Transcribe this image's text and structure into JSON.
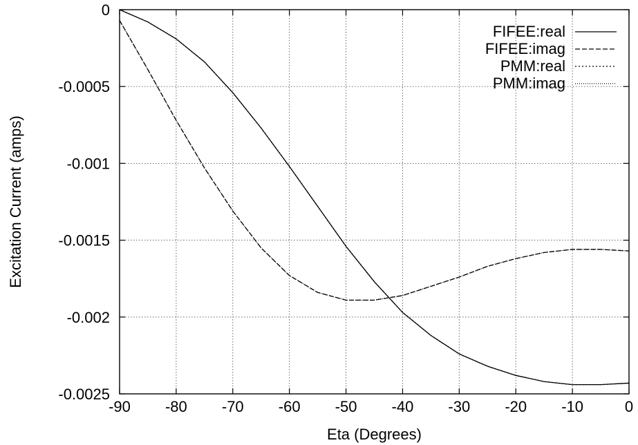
{
  "chart_data": {
    "type": "line",
    "title": "",
    "xlabel": "Eta (Degrees)",
    "ylabel": "Excitation Current (amps)",
    "xlim": [
      -90,
      0
    ],
    "ylim": [
      -0.0025,
      0
    ],
    "xticks": [
      -90,
      -80,
      -70,
      -60,
      -50,
      -40,
      -30,
      -20,
      -10,
      0
    ],
    "xtick_labels": [
      "-90",
      "-80",
      "-70",
      "-60",
      "-50",
      "-40",
      "-30",
      "-20",
      "-10",
      "0"
    ],
    "yticks": [
      0,
      -0.0005,
      -0.001,
      -0.0015,
      -0.002,
      -0.0025
    ],
    "ytick_labels": [
      "0",
      "-0.0005",
      "-0.001",
      "-0.0015",
      "-0.002",
      "-0.0025"
    ],
    "grid": true,
    "legend_position": "top-right",
    "x": [
      -90,
      -85,
      -80,
      -75,
      -70,
      -65,
      -60,
      -55,
      -50,
      -45,
      -40,
      -35,
      -30,
      -25,
      -20,
      -15,
      -10,
      -5,
      0
    ],
    "series": [
      {
        "name": "FIFEE:real",
        "dash": "solid",
        "values": [
          0,
          -8e-05,
          -0.00019,
          -0.00034,
          -0.00054,
          -0.00077,
          -0.00102,
          -0.00128,
          -0.00154,
          -0.00177,
          -0.00197,
          -0.00212,
          -0.00224,
          -0.00232,
          -0.00238,
          -0.00242,
          -0.00244,
          -0.00244,
          -0.00243
        ]
      },
      {
        "name": "FIFEE:imag",
        "dash": "dashed",
        "values": [
          -7e-05,
          -0.00039,
          -0.00072,
          -0.00103,
          -0.00131,
          -0.00155,
          -0.00173,
          -0.00184,
          -0.00189,
          -0.00189,
          -0.00186,
          -0.0018,
          -0.00174,
          -0.00167,
          -0.00162,
          -0.00158,
          -0.00156,
          -0.00156,
          -0.00157
        ]
      },
      {
        "name": "PMM:real",
        "dash": "dotted",
        "values": [
          0,
          -8e-05,
          -0.00019,
          -0.00034,
          -0.00054,
          -0.00077,
          -0.00102,
          -0.00128,
          -0.00154,
          -0.00177,
          -0.00197,
          -0.00212,
          -0.00224,
          -0.00232,
          -0.00238,
          -0.00242,
          -0.00244,
          -0.00244,
          -0.00243
        ]
      },
      {
        "name": "PMM:imag",
        "dash": "fine-dotted",
        "values": [
          -7e-05,
          -0.00039,
          -0.00072,
          -0.00103,
          -0.00131,
          -0.00155,
          -0.00173,
          -0.00184,
          -0.00189,
          -0.00189,
          -0.00186,
          -0.0018,
          -0.00174,
          -0.00167,
          -0.00162,
          -0.00158,
          -0.00156,
          -0.00156,
          -0.00157
        ]
      }
    ]
  }
}
